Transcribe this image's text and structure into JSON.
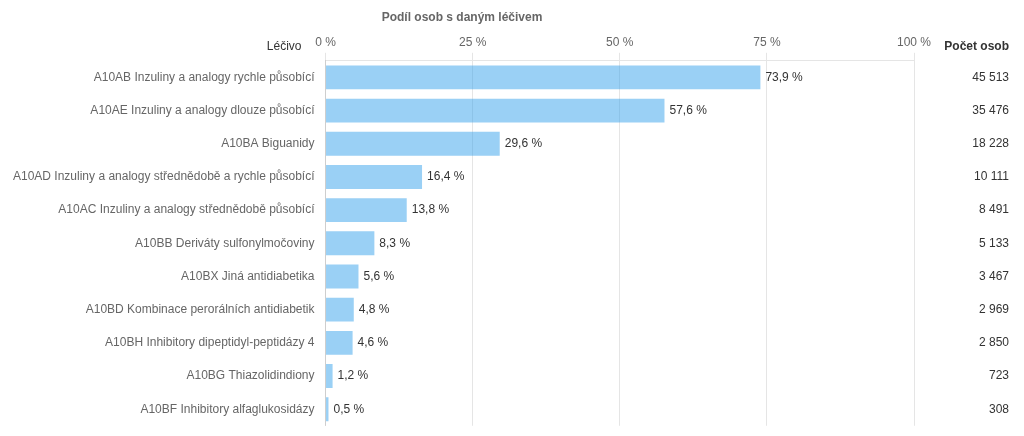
{
  "chart_data": {
    "type": "bar",
    "orientation": "horizontal",
    "title": "Podíl osob s daným léčivem",
    "ylabel": "Léčivo",
    "count_title": "Počet osob",
    "categories": [
      "A10AB Inzuliny a analogy rychle působící",
      "A10AE Inzuliny a analogy dlouze působící",
      "A10BA Biguanidy",
      "A10AD Inzuliny a analogy střednědobě a rychle působící",
      "A10AC Inzuliny a analogy střednědobě působící",
      "A10BB Deriváty sulfonylmočoviny",
      "A10BX Jiná antidiabetika",
      "A10BD Kombinace perorálních antidiabetik",
      "A10BH Inhibitory dipeptidyl-peptidázy 4",
      "A10BG Thiazolidindiony",
      "A10BF Inhibitory alfaglukosidázy"
    ],
    "values": [
      73.9,
      57.6,
      29.6,
      16.4,
      13.8,
      8.3,
      5.6,
      4.8,
      4.6,
      1.2,
      0.5
    ],
    "value_labels": [
      "73,9 %",
      "57,6 %",
      "29,6 %",
      "16,4 %",
      "13,8 %",
      "8,3 %",
      "5,6 %",
      "4,8 %",
      "4,6 %",
      "1,2 %",
      "0,5 %"
    ],
    "data_labels": true,
    "counts": [
      45513,
      35476,
      18228,
      10111,
      8491,
      5133,
      3467,
      2969,
      2850,
      723,
      308
    ],
    "count_labels": [
      "45 513",
      "35 476",
      "18 228",
      "10 111",
      "8 491",
      "5 133",
      "3 467",
      "2 969",
      "2 850",
      "723",
      "308"
    ],
    "xlim": [
      0,
      100
    ],
    "xticks": [
      {
        "value": 0,
        "label": "0 %"
      },
      {
        "value": 25,
        "label": "25 %"
      },
      {
        "value": 50,
        "label": "50 %"
      },
      {
        "value": 75,
        "label": "75 %"
      },
      {
        "value": 100,
        "label": "100 %"
      }
    ],
    "grid": true
  }
}
